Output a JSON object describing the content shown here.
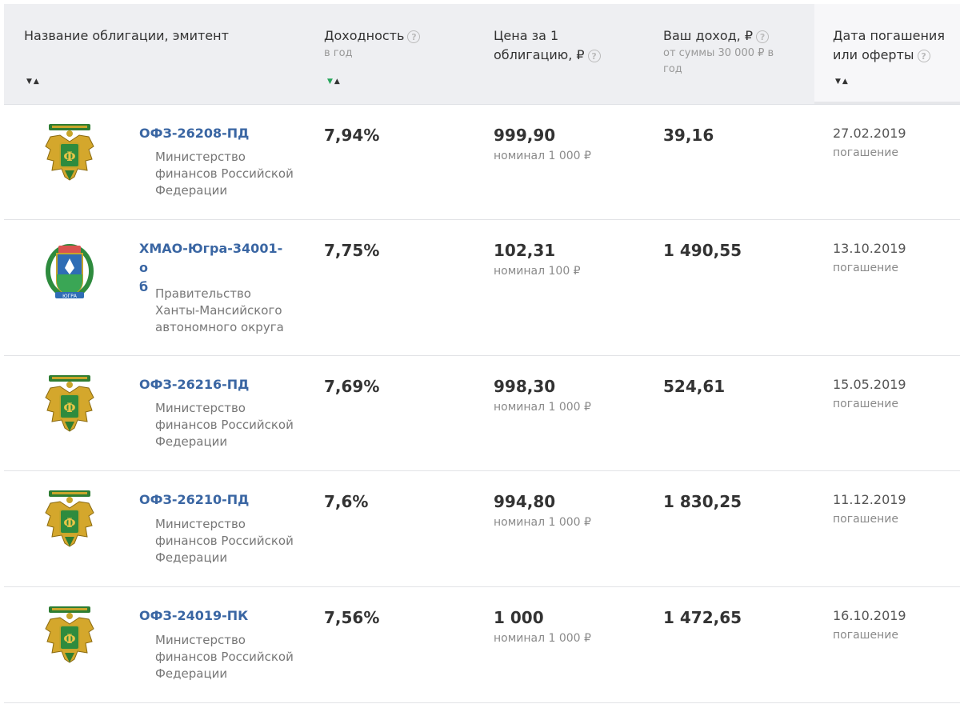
{
  "header": {
    "col_name": "Название облигации, эмитент",
    "col_yield": "Доходность",
    "col_yield_sub": "в год",
    "col_price_1": "Цена за 1",
    "col_price_2": "облигацию, ₽",
    "col_income": "Ваш доход, ₽",
    "col_income_sub_1": "от суммы 30 000 ₽ в",
    "col_income_sub_2": "год",
    "col_date_1": "Дата погашения",
    "col_date_2": "или оферты",
    "help_glyph": "?",
    "sort_down": "▼",
    "sort_up": "▲"
  },
  "rows": [
    {
      "emblem": "minfin-emblem",
      "name": "ОФЗ-26208-ПД",
      "issuer": [
        "Министерство",
        "финансов Российской",
        "Федерации"
      ],
      "yield": "7,94%",
      "price": "999,90",
      "nominal": "номинал 1 000 ₽",
      "income": "39,16",
      "date": "27.02.2019",
      "date_type": "погашение"
    },
    {
      "emblem": "hmao-emblem",
      "name_1": "ХМАО-Югра-34001-о",
      "name_2": "б",
      "issuer": [
        "Правительство",
        "Ханты-Мансийского",
        "автономного округа"
      ],
      "yield": "7,75%",
      "price": "102,31",
      "nominal": "номинал 100 ₽",
      "income": "1 490,55",
      "date": "13.10.2019",
      "date_type": "погашение"
    },
    {
      "emblem": "minfin-emblem",
      "name": "ОФЗ-26216-ПД",
      "issuer": [
        "Министерство",
        "финансов Российской",
        "Федерации"
      ],
      "yield": "7,69%",
      "price": "998,30",
      "nominal": "номинал 1 000 ₽",
      "income": "524,61",
      "date": "15.05.2019",
      "date_type": "погашение"
    },
    {
      "emblem": "minfin-emblem",
      "name": "ОФЗ-26210-ПД",
      "issuer": [
        "Министерство",
        "финансов Российской",
        "Федерации"
      ],
      "yield": "7,6%",
      "price": "994,80",
      "nominal": "номинал 1 000 ₽",
      "income": "1 830,25",
      "date": "11.12.2019",
      "date_type": "погашение"
    },
    {
      "emblem": "minfin-emblem",
      "name": "ОФЗ-24019-ПК",
      "issuer": [
        "Министерство",
        "финансов Российской",
        "Федерации"
      ],
      "yield": "7,56%",
      "price": "1 000",
      "nominal": "номинал 1 000 ₽",
      "income": "1 472,65",
      "date": "16.10.2019",
      "date_type": "погашение"
    }
  ],
  "colors": {
    "link": "#3a66a3",
    "sort_active": "#26a65b",
    "header_bg": "#eeeff2"
  }
}
